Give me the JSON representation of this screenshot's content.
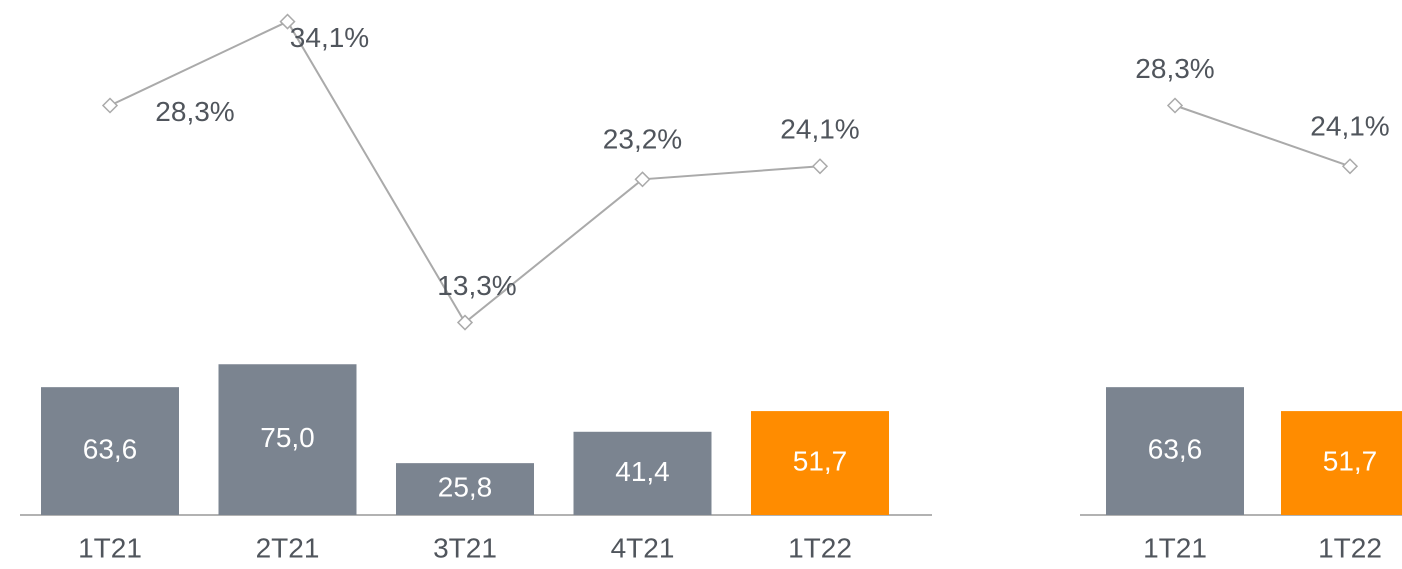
{
  "chart_data": [
    {
      "type": "combo",
      "categories": [
        "1T21",
        "2T21",
        "3T21",
        "4T21",
        "1T22"
      ],
      "series": [
        {
          "type": "bar",
          "colors": [
            "#7b8490",
            "#7b8490",
            "#7b8490",
            "#7b8490",
            "#ff8c00"
          ],
          "values": [
            63.6,
            75.0,
            25.8,
            41.4,
            51.7
          ],
          "value_labels": [
            "63,6",
            "75,0",
            "25,8",
            "41,4",
            "51,7"
          ]
        },
        {
          "type": "line",
          "color": "#aaaaaa",
          "values": [
            28.3,
            34.1,
            13.3,
            23.2,
            24.1
          ],
          "value_labels": [
            "28,3%",
            "34,1%",
            "13,3%",
            "23,2%",
            "24,1%"
          ]
        }
      ]
    },
    {
      "type": "combo",
      "categories": [
        "1T21",
        "1T22"
      ],
      "series": [
        {
          "type": "bar",
          "colors": [
            "#7b8490",
            "#ff8c00"
          ],
          "values": [
            63.6,
            51.7
          ],
          "value_labels": [
            "63,6",
            "51,7"
          ]
        },
        {
          "type": "line",
          "color": "#aaaaaa",
          "values": [
            28.3,
            24.1
          ],
          "value_labels": [
            "28,3%",
            "24,1%"
          ]
        }
      ]
    }
  ]
}
